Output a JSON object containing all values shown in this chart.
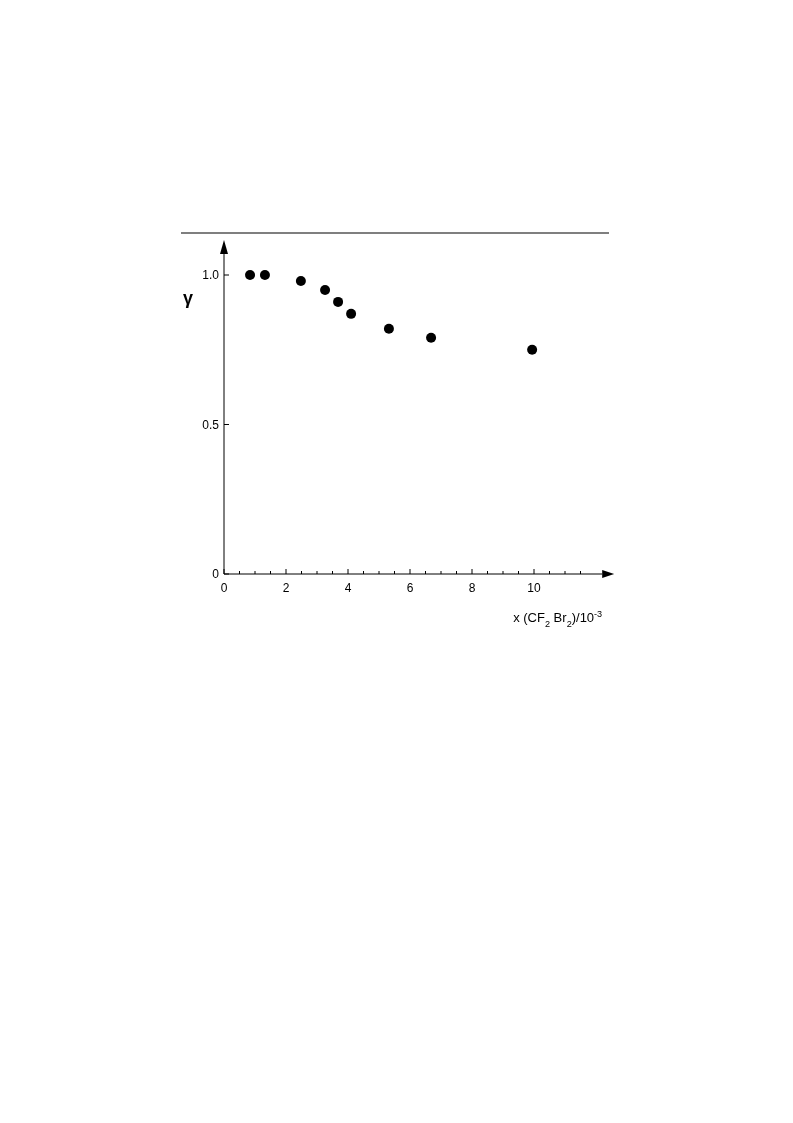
{
  "chart_data": {
    "type": "scatter",
    "xlabel": "x (CF$_{2}$ Br$_{2}$)/10$^{-3}$",
    "ylabel": "γ",
    "x": [
      0.84,
      1.32,
      2.48,
      3.26,
      3.68,
      4.1,
      5.32,
      6.68,
      9.94
    ],
    "values": [
      1.0,
      1.0,
      0.98,
      0.95,
      0.91,
      0.87,
      0.82,
      0.79,
      0.75
    ],
    "color": "#000000",
    "marker": "circle",
    "grid": false,
    "xlim": [
      0,
      12.2
    ],
    "ylim": [
      0,
      1.07
    ],
    "xticks": [
      0,
      {
        "value": 0.5,
        "label": null
      },
      {
        "value": 1,
        "label": null
      },
      {
        "value": 1.5,
        "label": null
      },
      2,
      {
        "value": 2.5,
        "label": null
      },
      {
        "value": 3,
        "label": null
      },
      {
        "value": 3.5,
        "label": null
      },
      4,
      {
        "value": 4.5,
        "label": null
      },
      {
        "value": 5,
        "label": null
      },
      {
        "value": 5.5,
        "label": null
      },
      6,
      {
        "value": 6.5,
        "label": null
      },
      {
        "value": 7,
        "label": null
      },
      {
        "value": 7.5,
        "label": null
      },
      8,
      {
        "value": 8.5,
        "label": null
      },
      {
        "value": 9,
        "label": null
      },
      {
        "value": 9.5,
        "label": null
      },
      10,
      {
        "value": 10.5,
        "label": null
      },
      {
        "value": 11,
        "label": null
      },
      {
        "value": 11.5,
        "label": null
      }
    ],
    "yticks": [
      0,
      0.5,
      {
        "value": 1.0,
        "label": "1.0"
      }
    ]
  }
}
